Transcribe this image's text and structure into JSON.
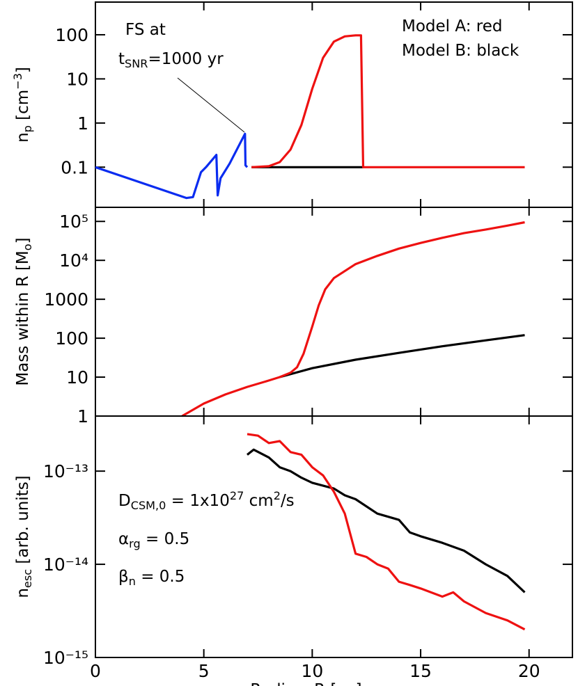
{
  "chart_data": [
    {
      "type": "line",
      "log_y": true,
      "ylabel": [
        {
          "text": "n"
        },
        {
          "text": "p",
          "pos": "sub"
        },
        {
          "text": " [cm"
        },
        {
          "text": "−3",
          "pos": "sup"
        },
        {
          "text": "]"
        }
      ],
      "xlim": [
        0,
        22
      ],
      "xticks": [
        0,
        5,
        10,
        15,
        20
      ],
      "show_xtick_labels": false,
      "ylim": [
        0.0123,
        550
      ],
      "yticks": [
        0.1,
        1,
        10,
        100
      ],
      "annotations": [
        [
          {
            "text": "FS at"
          }
        ],
        [
          {
            "text": "t"
          },
          {
            "text": "SNR",
            "pos": "sub"
          },
          {
            "text": "=1000 yr"
          }
        ],
        [
          {
            "text": "Model A: red"
          }
        ],
        [
          {
            "text": "Model B: black"
          }
        ]
      ],
      "series": [
        {
          "color": "#0a2cf0",
          "x": [
            0,
            4.2,
            4.5,
            4.87,
            5.1,
            5.58,
            5.64,
            5.77,
            6.19,
            6.9,
            6.92,
            7.0
          ],
          "values": [
            0.1,
            0.02,
            0.021,
            0.077,
            0.1,
            0.19,
            0.023,
            0.056,
            0.12,
            0.57,
            0.11,
            0.1
          ]
        },
        {
          "color": "#000000",
          "x": [
            7.2,
            12.35
          ],
          "values": [
            0.1,
            0.1
          ]
        },
        {
          "color": "#ee1111",
          "x": [
            7.2,
            8,
            8.5,
            9,
            9.5,
            10,
            10.5,
            11,
            11.5,
            12,
            12.25,
            12.35,
            19.8
          ],
          "values": [
            0.1,
            0.105,
            0.13,
            0.25,
            0.9,
            6,
            30,
            70,
            92,
            97,
            97,
            0.1,
            0.1
          ]
        }
      ]
    },
    {
      "type": "line",
      "log_y": true,
      "ylabel": [
        {
          "text": "Mass within R [M"
        },
        {
          "text": "o",
          "pos": "sub"
        },
        {
          "text": "]"
        }
      ],
      "xlim": [
        0,
        22
      ],
      "xticks": [
        0,
        5,
        10,
        15,
        20
      ],
      "show_xtick_labels": false,
      "ylim": [
        1,
        230000
      ],
      "yticks": [
        1,
        10,
        100,
        1000,
        {
          "value": 10000,
          "label": "10⁴"
        },
        {
          "value": 100000,
          "label": "10⁵"
        }
      ],
      "annotations": [],
      "series": [
        {
          "color": "#000000",
          "x": [
            8.5,
            10,
            12,
            14,
            16,
            18,
            19.8
          ],
          "values": [
            10,
            17,
            28,
            42,
            62,
            88,
            120
          ]
        },
        {
          "color": "#ee1111",
          "x": [
            4,
            5,
            6,
            7,
            8,
            8.5,
            9,
            9.3,
            9.6,
            10,
            10.3,
            10.6,
            11,
            12,
            13,
            14,
            15,
            16,
            17,
            18,
            19,
            19.8
          ],
          "values": [
            1,
            2.1,
            3.6,
            5.6,
            8.2,
            10,
            13,
            18,
            40,
            200,
            700,
            1800,
            3500,
            8000,
            13000,
            20000,
            28000,
            38000,
            50000,
            62000,
            78000,
            95000
          ]
        }
      ]
    },
    {
      "type": "line",
      "log_y": true,
      "ylabel": [
        {
          "text": "n"
        },
        {
          "text": "esc",
          "pos": "sub"
        },
        {
          "text": " [arb. units]"
        }
      ],
      "xlabel": "Radius, R [pc]",
      "xlim": [
        0,
        22
      ],
      "xticks": [
        0,
        5,
        10,
        15,
        20
      ],
      "show_xtick_labels": true,
      "ylim": [
        1e-15,
        3.9e-13
      ],
      "yticks": [
        {
          "value": 1e-15,
          "label": "10⁻¹⁵"
        },
        {
          "value": 1e-14,
          "label": "10⁻¹⁴"
        },
        {
          "value": 1e-13,
          "label": "10⁻¹³"
        }
      ],
      "annotations": [
        [
          {
            "text": "D"
          },
          {
            "text": "CSM,0",
            "pos": "sub"
          },
          {
            "text": " = 1x10"
          },
          {
            "text": "27",
            "pos": "sup"
          },
          {
            "text": " cm"
          },
          {
            "text": "2",
            "pos": "sup"
          },
          {
            "text": "/s"
          }
        ],
        [
          {
            "text": "α"
          },
          {
            "text": "rg",
            "pos": "sub"
          },
          {
            "text": " = 0.5"
          }
        ],
        [
          {
            "text": "β"
          },
          {
            "text": "n",
            "pos": "sub"
          },
          {
            "text": " = 0.5"
          }
        ]
      ],
      "series": [
        {
          "color": "#000000",
          "x": [
            7,
            7.3,
            8,
            8.5,
            9,
            9.5,
            10,
            11,
            11.5,
            12,
            13,
            14,
            14.5,
            15,
            16,
            17,
            18,
            19,
            19.8
          ],
          "values": [
            1.5e-13,
            1.7e-13,
            1.4e-13,
            1.1e-13,
            1e-13,
            8.5e-14,
            7.5e-14,
            6.5e-14,
            5.5e-14,
            5e-14,
            3.5e-14,
            3e-14,
            2.2e-14,
            2e-14,
            1.7e-14,
            1.4e-14,
            1e-14,
            7.5e-15,
            5e-15
          ]
        },
        {
          "color": "#ee1111",
          "x": [
            7,
            7.5,
            8,
            8.5,
            9,
            9.5,
            10,
            10.5,
            11,
            11.5,
            12,
            12.5,
            13,
            13.5,
            14,
            14.5,
            15,
            16,
            16.5,
            17,
            18,
            19,
            19.8
          ],
          "values": [
            2.5e-13,
            2.4e-13,
            2e-13,
            2.1e-13,
            1.6e-13,
            1.5e-13,
            1.1e-13,
            9e-14,
            6e-14,
            3.5e-14,
            1.3e-14,
            1.2e-14,
            1e-14,
            9e-15,
            6.5e-15,
            6e-15,
            5.5e-15,
            4.5e-15,
            5e-15,
            4e-15,
            3e-15,
            2.5e-15,
            2e-15
          ]
        }
      ]
    }
  ]
}
